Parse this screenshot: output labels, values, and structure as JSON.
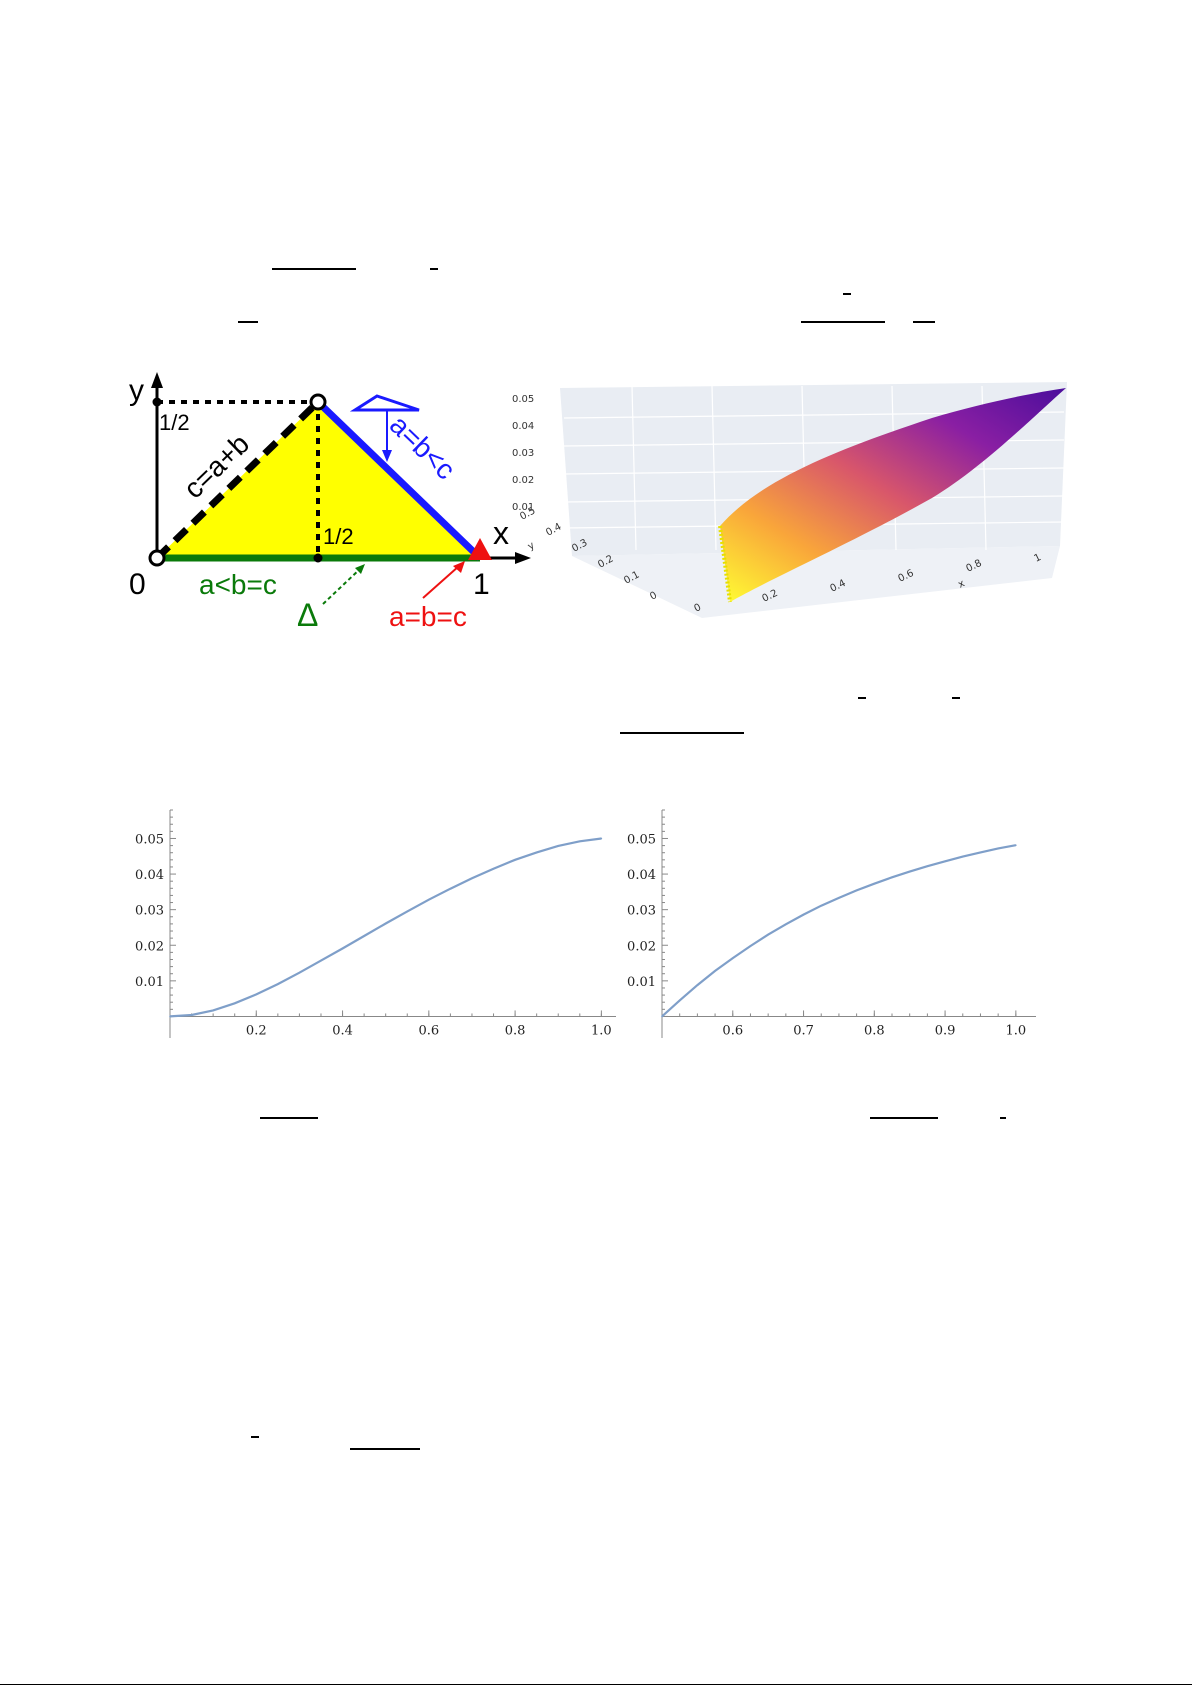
{
  "diagram": {
    "labels": {
      "y_axis": "y",
      "x_axis": "x",
      "origin": "0",
      "one": "1",
      "half_y": "1/2",
      "half_x": "1/2",
      "edge_c": "c=a+b",
      "edge_ab": "a=b<c",
      "edge_base": "a<b=c",
      "region": "Δ",
      "vertex": "a=b=c"
    },
    "colors": {
      "fill": "#ffff00",
      "blue": "#1a1aff",
      "green": "#0a7a0a",
      "red": "#ee1111",
      "black": "#000000"
    }
  },
  "surface_plot": {
    "x_label": "x",
    "y_label": "y",
    "z_ticks": [
      "0.05",
      "0.04",
      "0.03",
      "0.02",
      "0.01"
    ],
    "x_ticks": [
      "0",
      "0.2",
      "0.4",
      "0.6",
      "0.8",
      "1"
    ],
    "y_ticks": [
      "0.5",
      "0.4",
      "0.3",
      "0.2",
      "0.1",
      "0"
    ],
    "colormap": [
      "#ffff33",
      "#f9a63a",
      "#d8566b",
      "#8a1fa3",
      "#4b0d9c"
    ]
  },
  "chart_data": [
    {
      "type": "line",
      "x": [
        0,
        0.05,
        0.1,
        0.15,
        0.2,
        0.25,
        0.3,
        0.35,
        0.4,
        0.45,
        0.5,
        0.55,
        0.6,
        0.65,
        0.7,
        0.75,
        0.8,
        0.85,
        0.9,
        0.95,
        1.0
      ],
      "y": [
        0,
        0.0004,
        0.0017,
        0.0037,
        0.0062,
        0.0091,
        0.0123,
        0.0157,
        0.0191,
        0.0226,
        0.0261,
        0.0295,
        0.0328,
        0.0359,
        0.0388,
        0.0415,
        0.044,
        0.0461,
        0.0479,
        0.0492,
        0.05
      ],
      "xlim": [
        0,
        1.02
      ],
      "ylim": [
        -0.001,
        0.058
      ],
      "x_ticks": [
        "0.2",
        "0.4",
        "0.6",
        "0.8",
        "1.0"
      ],
      "y_ticks": [
        "0.01",
        "0.02",
        "0.03",
        "0.04",
        "0.05"
      ],
      "color": "#7f9fc9"
    },
    {
      "type": "line",
      "x": [
        0.5,
        0.525,
        0.55,
        0.575,
        0.6,
        0.625,
        0.65,
        0.675,
        0.7,
        0.725,
        0.75,
        0.775,
        0.8,
        0.825,
        0.85,
        0.875,
        0.9,
        0.925,
        0.95,
        0.975,
        1.0
      ],
      "y": [
        0,
        0.0045,
        0.0088,
        0.0128,
        0.0164,
        0.0198,
        0.023,
        0.0259,
        0.0286,
        0.0311,
        0.0333,
        0.0354,
        0.0373,
        0.0391,
        0.0407,
        0.0422,
        0.0436,
        0.0449,
        0.0461,
        0.0472,
        0.0481
      ],
      "xlim": [
        0.5,
        1.02
      ],
      "ylim": [
        -0.001,
        0.058
      ],
      "x_ticks": [
        "0.6",
        "0.7",
        "0.8",
        "0.9",
        "1.0"
      ],
      "y_ticks": [
        "0.01",
        "0.02",
        "0.03",
        "0.04",
        "0.05"
      ],
      "color": "#7f9fc9"
    }
  ]
}
